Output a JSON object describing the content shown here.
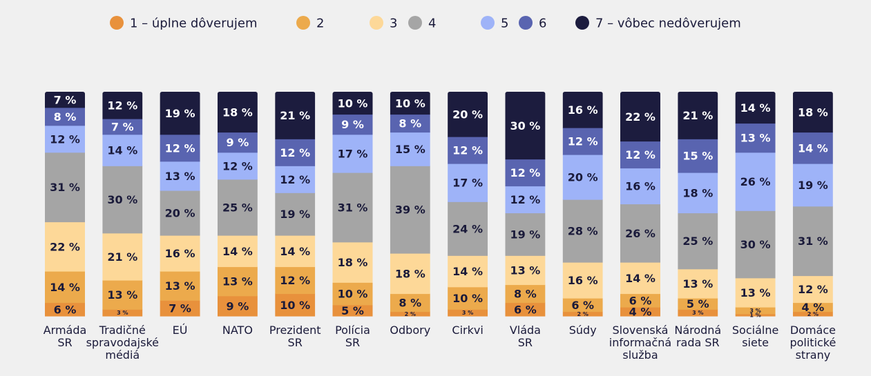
{
  "chart_data": {
    "type": "bar",
    "stacked": true,
    "legend_position": "top",
    "series": [
      {
        "name": "1 – úplne dôverujem",
        "color": "#e8913c",
        "labels": [
          "6 %",
          "3 %",
          "7 %",
          "9 %",
          "10 %",
          "5 %",
          "2 %",
          "3 %",
          "6 %",
          "2 %",
          "4 %",
          "3 %",
          "1 %",
          "2 %"
        ],
        "values": [
          6,
          3,
          7,
          9,
          10,
          5,
          2,
          3,
          6,
          2,
          4,
          3,
          1,
          2
        ]
      },
      {
        "name": "2",
        "color": "#ecaa4c",
        "labels": [
          "14 %",
          "13 %",
          "13 %",
          "13 %",
          "12 %",
          "10 %",
          "8 %",
          "10 %",
          "8 %",
          "6 %",
          "6 %",
          "5 %",
          "3 %",
          "4 %"
        ],
        "values": [
          14,
          13,
          13,
          13,
          12,
          10,
          8,
          10,
          8,
          6,
          6,
          5,
          3,
          4
        ]
      },
      {
        "name": "3",
        "color": "#fdd898",
        "labels": [
          "22 %",
          "21 %",
          "16 %",
          "14 %",
          "14 %",
          "18 %",
          "18 %",
          "14 %",
          "13 %",
          "16 %",
          "14 %",
          "13 %",
          "13 %",
          "12 %"
        ],
        "values": [
          22,
          21,
          16,
          14,
          14,
          18,
          18,
          14,
          13,
          16,
          14,
          13,
          13,
          12
        ]
      },
      {
        "name": "4",
        "color": "#a5a5a5",
        "labels": [
          "31 %",
          "30 %",
          "20 %",
          "25 %",
          "19 %",
          "31 %",
          "39 %",
          "24 %",
          "19 %",
          "28 %",
          "26 %",
          "25 %",
          "30 %",
          "31 %"
        ],
        "values": [
          31,
          30,
          20,
          25,
          19,
          31,
          39,
          24,
          19,
          28,
          26,
          25,
          30,
          31
        ]
      },
      {
        "name": "5",
        "color": "#9eb3f8",
        "labels": [
          "12 %",
          "14 %",
          "13 %",
          "12 %",
          "12 %",
          "17 %",
          "15 %",
          "17 %",
          "12 %",
          "20 %",
          "16 %",
          "18 %",
          "26 %",
          "19 %"
        ],
        "values": [
          12,
          14,
          13,
          12,
          12,
          17,
          15,
          17,
          12,
          20,
          16,
          18,
          26,
          19
        ]
      },
      {
        "name": "6",
        "color": "#5964b0",
        "labels": [
          "8 %",
          "7 %",
          "12 %",
          "9 %",
          "12 %",
          "9 %",
          "8 %",
          "12 %",
          "12 %",
          "12 %",
          "12 %",
          "15 %",
          "13 %",
          "14 %"
        ],
        "values": [
          8,
          7,
          12,
          9,
          12,
          9,
          8,
          12,
          12,
          12,
          12,
          15,
          13,
          14
        ]
      },
      {
        "name": "7 – vôbec nedôverujem",
        "color": "#1c1c3e",
        "labels": [
          "7 %",
          "12 %",
          "19 %",
          "18 %",
          "21 %",
          "10 %",
          "10 %",
          "20 %",
          "30 %",
          "16 %",
          "22 %",
          "21 %",
          "14 %",
          "18 %"
        ],
        "values": [
          7,
          12,
          19,
          18,
          21,
          10,
          10,
          20,
          30,
          16,
          22,
          21,
          14,
          18
        ]
      }
    ],
    "categories": [
      [
        "Armáda",
        "SR"
      ],
      [
        "Tradičné",
        "spravodajské",
        "médiá"
      ],
      [
        "EÚ"
      ],
      [
        "NATO"
      ],
      [
        "Prezident",
        "SR"
      ],
      [
        "Polícia",
        "SR"
      ],
      [
        "Odbory"
      ],
      [
        "Cirkvi"
      ],
      [
        "Vláda",
        "SR"
      ],
      [
        "Súdy"
      ],
      [
        "Slovenská",
        "informačná",
        "služba"
      ],
      [
        "Národná",
        "rada SR"
      ],
      [
        "Sociálne",
        "siete"
      ],
      [
        "Domáce",
        "politické",
        "strany"
      ]
    ]
  }
}
